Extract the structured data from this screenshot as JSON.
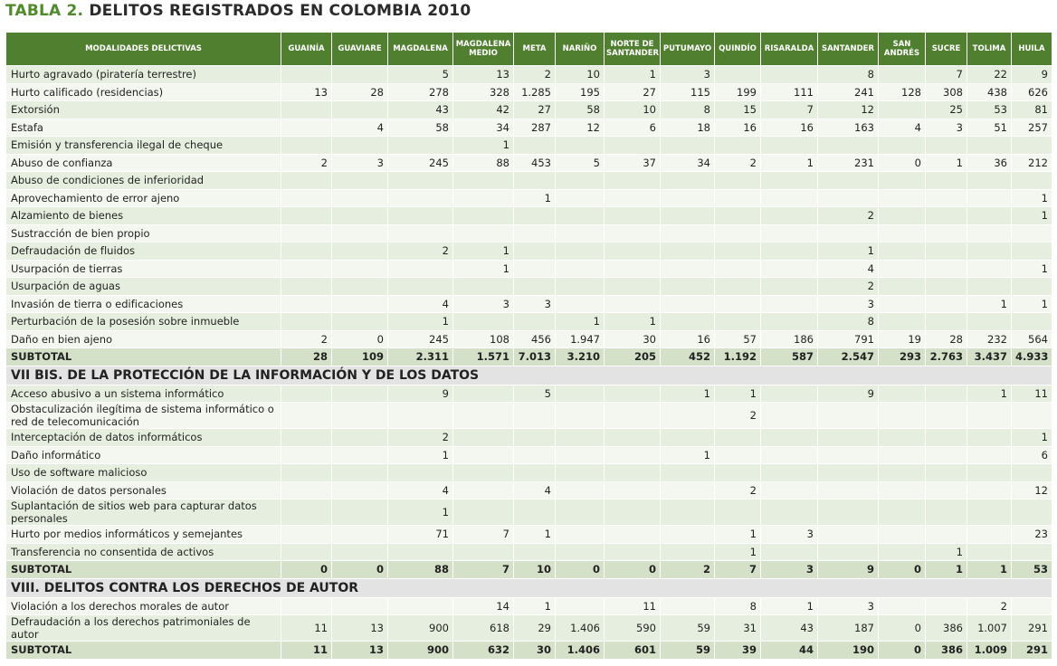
{
  "title": {
    "label": "TABLA 2.",
    "text": "DELITOS REGISTRADOS EN COLOMBIA 2010"
  },
  "columns": [
    "MODALIDADES DELICTIVAS",
    "GUAINÍA",
    "GUAVIARE",
    "MAGDALENA",
    "MAGDALENA MEDIO",
    "META",
    "NARIÑO",
    "NORTE DE SANTANDER",
    "PUTUMAYO",
    "QUINDÍO",
    "RISARALDA",
    "SANTANDER",
    "SAN ANDRÉS",
    "SUCRE",
    "TOLIMA",
    "HUILA"
  ],
  "sections": [
    {
      "rows": [
        {
          "label": "Hurto agravado (piratería terrestre)",
          "cells": [
            null,
            null,
            "5",
            "13",
            "2",
            "10",
            "1",
            "3",
            null,
            null,
            "8",
            null,
            "7",
            "22",
            "9"
          ]
        },
        {
          "label": "Hurto calificado (residencias)",
          "cells": [
            "13",
            "28",
            "278",
            "328",
            "1.285",
            "195",
            "27",
            "115",
            "199",
            "111",
            "241",
            "128",
            "308",
            "438",
            "626"
          ]
        },
        {
          "label": "Extorsión",
          "cells": [
            null,
            null,
            "43",
            "42",
            "27",
            "58",
            "10",
            "8",
            "15",
            "7",
            "12",
            null,
            "25",
            "53",
            "81"
          ]
        },
        {
          "label": "Estafa",
          "cells": [
            null,
            "4",
            "58",
            "34",
            "287",
            "12",
            "6",
            "18",
            "16",
            "16",
            "163",
            "4",
            "3",
            "51",
            "257"
          ]
        },
        {
          "label": "Emisión y transferencia ilegal de cheque",
          "cells": [
            null,
            null,
            null,
            "1",
            null,
            null,
            null,
            null,
            null,
            null,
            null,
            null,
            null,
            null,
            null
          ]
        },
        {
          "label": "Abuso de confianza",
          "cells": [
            "2",
            "3",
            "245",
            "88",
            "453",
            "5",
            "37",
            "34",
            "2",
            "1",
            "231",
            "0",
            "1",
            "36",
            "212"
          ]
        },
        {
          "label": "Abuso de condiciones de inferioridad",
          "cells": [
            null,
            null,
            null,
            null,
            null,
            null,
            null,
            null,
            null,
            null,
            null,
            null,
            null,
            null,
            null
          ]
        },
        {
          "label": "Aprovechamiento de error ajeno",
          "cells": [
            null,
            null,
            null,
            null,
            "1",
            null,
            null,
            null,
            null,
            null,
            null,
            null,
            null,
            null,
            "1"
          ]
        },
        {
          "label": "Alzamiento de bienes",
          "cells": [
            null,
            null,
            null,
            null,
            null,
            null,
            null,
            null,
            null,
            null,
            "2",
            null,
            null,
            null,
            "1"
          ]
        },
        {
          "label": "Sustracción de bien propio",
          "cells": [
            null,
            null,
            null,
            null,
            null,
            null,
            null,
            null,
            null,
            null,
            null,
            null,
            null,
            null,
            null
          ]
        },
        {
          "label": "Defraudación de fluidos",
          "cells": [
            null,
            null,
            "2",
            "1",
            null,
            null,
            null,
            null,
            null,
            null,
            "1",
            null,
            null,
            null,
            null
          ]
        },
        {
          "label": "Usurpación de tierras",
          "cells": [
            null,
            null,
            null,
            "1",
            null,
            null,
            null,
            null,
            null,
            null,
            "4",
            null,
            null,
            null,
            "1"
          ]
        },
        {
          "label": "Usurpación de aguas",
          "cells": [
            null,
            null,
            null,
            null,
            null,
            null,
            null,
            null,
            null,
            null,
            "2",
            null,
            null,
            null,
            null
          ]
        },
        {
          "label": "Invasión de tierra o edificaciones",
          "cells": [
            null,
            null,
            "4",
            "3",
            "3",
            null,
            null,
            null,
            null,
            null,
            "3",
            null,
            null,
            "1",
            "1"
          ]
        },
        {
          "label": "Perturbación de la posesión sobre inmueble",
          "cells": [
            null,
            null,
            "1",
            null,
            null,
            "1",
            "1",
            null,
            null,
            null,
            "8",
            null,
            null,
            null,
            null
          ]
        },
        {
          "label": "Daño en bien ajeno",
          "cells": [
            "2",
            "0",
            "245",
            "108",
            "456",
            "1.947",
            "30",
            "16",
            "57",
            "186",
            "791",
            "19",
            "28",
            "232",
            "564"
          ]
        }
      ],
      "subtotal": {
        "label": "SUBTOTAL",
        "cells": [
          "28",
          "109",
          "2.311",
          "1.571",
          "7.013",
          "3.210",
          "205",
          "452",
          "1.192",
          "587",
          "2.547",
          "293",
          "2.763",
          "3.437",
          "4.933"
        ]
      }
    },
    {
      "heading": "VII BIS. DE LA PROTECCIÓN DE LA INFORMACIÓN Y DE LOS DATOS",
      "rows": [
        {
          "label": "Acceso abusivo a un sistema informático",
          "cells": [
            null,
            null,
            "9",
            null,
            "5",
            null,
            null,
            "1",
            "1",
            null,
            "9",
            null,
            null,
            "1",
            "11"
          ]
        },
        {
          "label": "Obstaculización ilegítima de sistema informático o red de telecomunicación",
          "cells": [
            null,
            null,
            null,
            null,
            null,
            null,
            null,
            null,
            "2",
            null,
            null,
            null,
            null,
            null,
            null
          ]
        },
        {
          "label": "Interceptación de datos informáticos",
          "cells": [
            null,
            null,
            "2",
            null,
            null,
            null,
            null,
            null,
            null,
            null,
            null,
            null,
            null,
            null,
            "1"
          ]
        },
        {
          "label": "Daño informático",
          "cells": [
            null,
            null,
            "1",
            null,
            null,
            null,
            null,
            "1",
            null,
            null,
            null,
            null,
            null,
            null,
            "6"
          ]
        },
        {
          "label": "Uso de software malicioso",
          "cells": [
            null,
            null,
            null,
            null,
            null,
            null,
            null,
            null,
            null,
            null,
            null,
            null,
            null,
            null,
            null
          ]
        },
        {
          "label": "Violación de datos personales",
          "cells": [
            null,
            null,
            "4",
            null,
            "4",
            null,
            null,
            null,
            "2",
            null,
            null,
            null,
            null,
            null,
            "12"
          ]
        },
        {
          "label": "Suplantación de sitios web para capturar datos personales",
          "cells": [
            null,
            null,
            "1",
            null,
            null,
            null,
            null,
            null,
            null,
            null,
            null,
            null,
            null,
            null,
            null
          ]
        },
        {
          "label": "Hurto por medios informáticos y semejantes",
          "cells": [
            null,
            null,
            "71",
            "7",
            "1",
            null,
            null,
            null,
            "1",
            "3",
            null,
            null,
            null,
            null,
            "23"
          ]
        },
        {
          "label": "Transferencia no consentida de activos",
          "cells": [
            null,
            null,
            null,
            null,
            null,
            null,
            null,
            null,
            "1",
            null,
            null,
            null,
            "1",
            null,
            null
          ]
        }
      ],
      "subtotal": {
        "label": "SUBTOTAL",
        "cells": [
          "0",
          "0",
          "88",
          "7",
          "10",
          "0",
          "0",
          "2",
          "7",
          "3",
          "9",
          "0",
          "1",
          "1",
          "53"
        ]
      }
    },
    {
      "heading": "VIII. DELITOS CONTRA LOS DERECHOS DE AUTOR",
      "rows": [
        {
          "label": "Violación a los derechos morales de autor",
          "cells": [
            null,
            null,
            null,
            "14",
            "1",
            null,
            "11",
            null,
            "8",
            "1",
            "3",
            null,
            null,
            "2",
            null
          ]
        },
        {
          "label": "Defraudación a los derechos patrimoniales de autor",
          "cells": [
            "11",
            "13",
            "900",
            "618",
            "29",
            "1.406",
            "590",
            "59",
            "31",
            "43",
            "187",
            "0",
            "386",
            "1.007",
            "291"
          ]
        }
      ],
      "subtotal": {
        "label": "SUBTOTAL",
        "cells": [
          "11",
          "13",
          "900",
          "632",
          "30",
          "1.406",
          "601",
          "59",
          "39",
          "44",
          "190",
          "0",
          "386",
          "1.009",
          "291"
        ]
      }
    }
  ]
}
